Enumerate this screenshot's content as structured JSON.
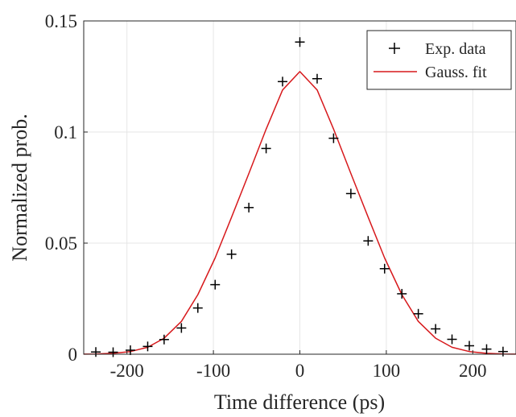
{
  "chart_data": {
    "type": "scatter",
    "title": "",
    "xlabel": "Time difference (ps)",
    "ylabel": "Normalized prob.",
    "xlim": [
      -250,
      250
    ],
    "ylim": [
      0,
      0.15
    ],
    "xticks": [
      -200,
      -100,
      0,
      100,
      200
    ],
    "yticks": [
      0,
      0.05,
      0.1,
      0.15
    ],
    "xtick_labels": [
      "-200",
      "-100",
      "0",
      "100",
      "200"
    ],
    "ytick_labels": [
      "0",
      "0.05",
      "0.1",
      "0.15"
    ],
    "grid": true,
    "legend_position": "top-right",
    "series": [
      {
        "name": "Exp. data",
        "style": "markers",
        "marker": "plus",
        "color": "#000000",
        "x": [
          -236,
          -216,
          -196,
          -176,
          -157,
          -137,
          -118,
          -98,
          -79,
          -59,
          -39,
          -20,
          0,
          20,
          39,
          59,
          79,
          98,
          118,
          137,
          157,
          176,
          196,
          216,
          235
        ],
        "y": [
          0.001,
          0.0009,
          0.0018,
          0.0035,
          0.0066,
          0.0118,
          0.0208,
          0.0313,
          0.045,
          0.066,
          0.0926,
          0.1227,
          0.1405,
          0.124,
          0.0972,
          0.0723,
          0.051,
          0.0385,
          0.0272,
          0.0182,
          0.0114,
          0.0067,
          0.0038,
          0.0023,
          0.0012
        ]
      },
      {
        "name": "Gauss. fit",
        "style": "line",
        "color": "#d7191c",
        "x": [
          -250,
          -236,
          -216,
          -196,
          -176,
          -157,
          -137,
          -118,
          -98,
          -79,
          -59,
          -39,
          -20,
          0,
          20,
          39,
          59,
          79,
          98,
          118,
          137,
          157,
          176,
          196,
          216,
          236,
          250
        ],
        "y": [
          3e-05,
          0.0001,
          0.0004,
          0.0012,
          0.0031,
          0.0072,
          0.0148,
          0.0268,
          0.0433,
          0.0617,
          0.0813,
          0.1013,
          0.1189,
          0.1272,
          0.1189,
          0.1013,
          0.0813,
          0.0617,
          0.0433,
          0.0268,
          0.0148,
          0.0072,
          0.0031,
          0.0012,
          0.0004,
          0.0001,
          3e-05
        ]
      }
    ]
  }
}
